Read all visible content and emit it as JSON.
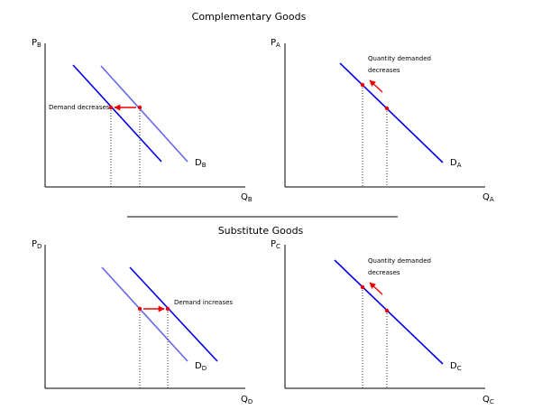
{
  "sections": {
    "complementary_title": "Complementary Goods",
    "substitute_title": "Substitute Goods"
  },
  "panels": {
    "b": {
      "y_label": "P",
      "y_sub": "B",
      "x_label": "Q",
      "x_sub": "B",
      "curve": "D",
      "curve_sub": "B",
      "note": "Demand decreases"
    },
    "a": {
      "y_label": "P",
      "y_sub": "A",
      "x_label": "Q",
      "x_sub": "A",
      "curve": "D",
      "curve_sub": "A",
      "note_line1": "Quantity demanded",
      "note_line2": "decreases"
    },
    "d": {
      "y_label": "P",
      "y_sub": "D",
      "x_label": "Q",
      "x_sub": "D",
      "curve": "D",
      "curve_sub": "D",
      "note": "Demand increases"
    },
    "c": {
      "y_label": "P",
      "y_sub": "C",
      "x_label": "Q",
      "x_sub": "C",
      "curve": "D",
      "curve_sub": "C",
      "note_line1": "Quantity demanded",
      "note_line2": "decreases"
    }
  },
  "colors": {
    "curve_dark": "#0000ee",
    "curve_light": "#6666ee",
    "arrow": "#ee0000",
    "axis": "#000000"
  }
}
